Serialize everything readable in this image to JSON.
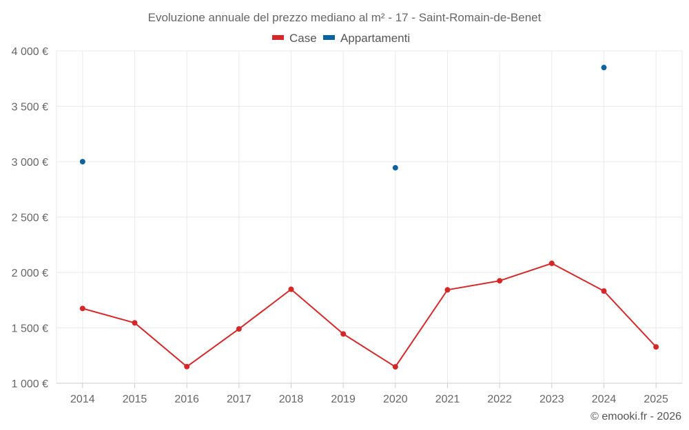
{
  "chart_data": {
    "type": "line",
    "title": "Evoluzione annuale del prezzo mediano al m² - 17 - Saint-Romain-de-Benet",
    "categories": [
      "2014",
      "2015",
      "2016",
      "2017",
      "2018",
      "2019",
      "2020",
      "2021",
      "2022",
      "2023",
      "2024",
      "2025"
    ],
    "series": [
      {
        "name": "Case",
        "color": "#d62728",
        "values": [
          1675,
          1545,
          1150,
          1490,
          1848,
          1445,
          1148,
          1843,
          1925,
          2082,
          1832,
          1328
        ]
      },
      {
        "name": "Appartamenti",
        "color": "#0b64a0",
        "values": [
          3000,
          null,
          null,
          null,
          null,
          null,
          2945,
          null,
          null,
          null,
          3850,
          null
        ]
      }
    ],
    "ylim": [
      1000,
      4000
    ],
    "yticks": [
      1000,
      1500,
      2000,
      2500,
      3000,
      3500,
      4000
    ],
    "ytick_labels": [
      "1 000 €",
      "1 500 €",
      "2 000 €",
      "2 500 €",
      "3 000 €",
      "3 500 €",
      "4 000 €"
    ],
    "xlabel": "",
    "ylabel": "",
    "grid": true,
    "legend_position": "top-center"
  },
  "credit": "© emooki.fr - 2026"
}
